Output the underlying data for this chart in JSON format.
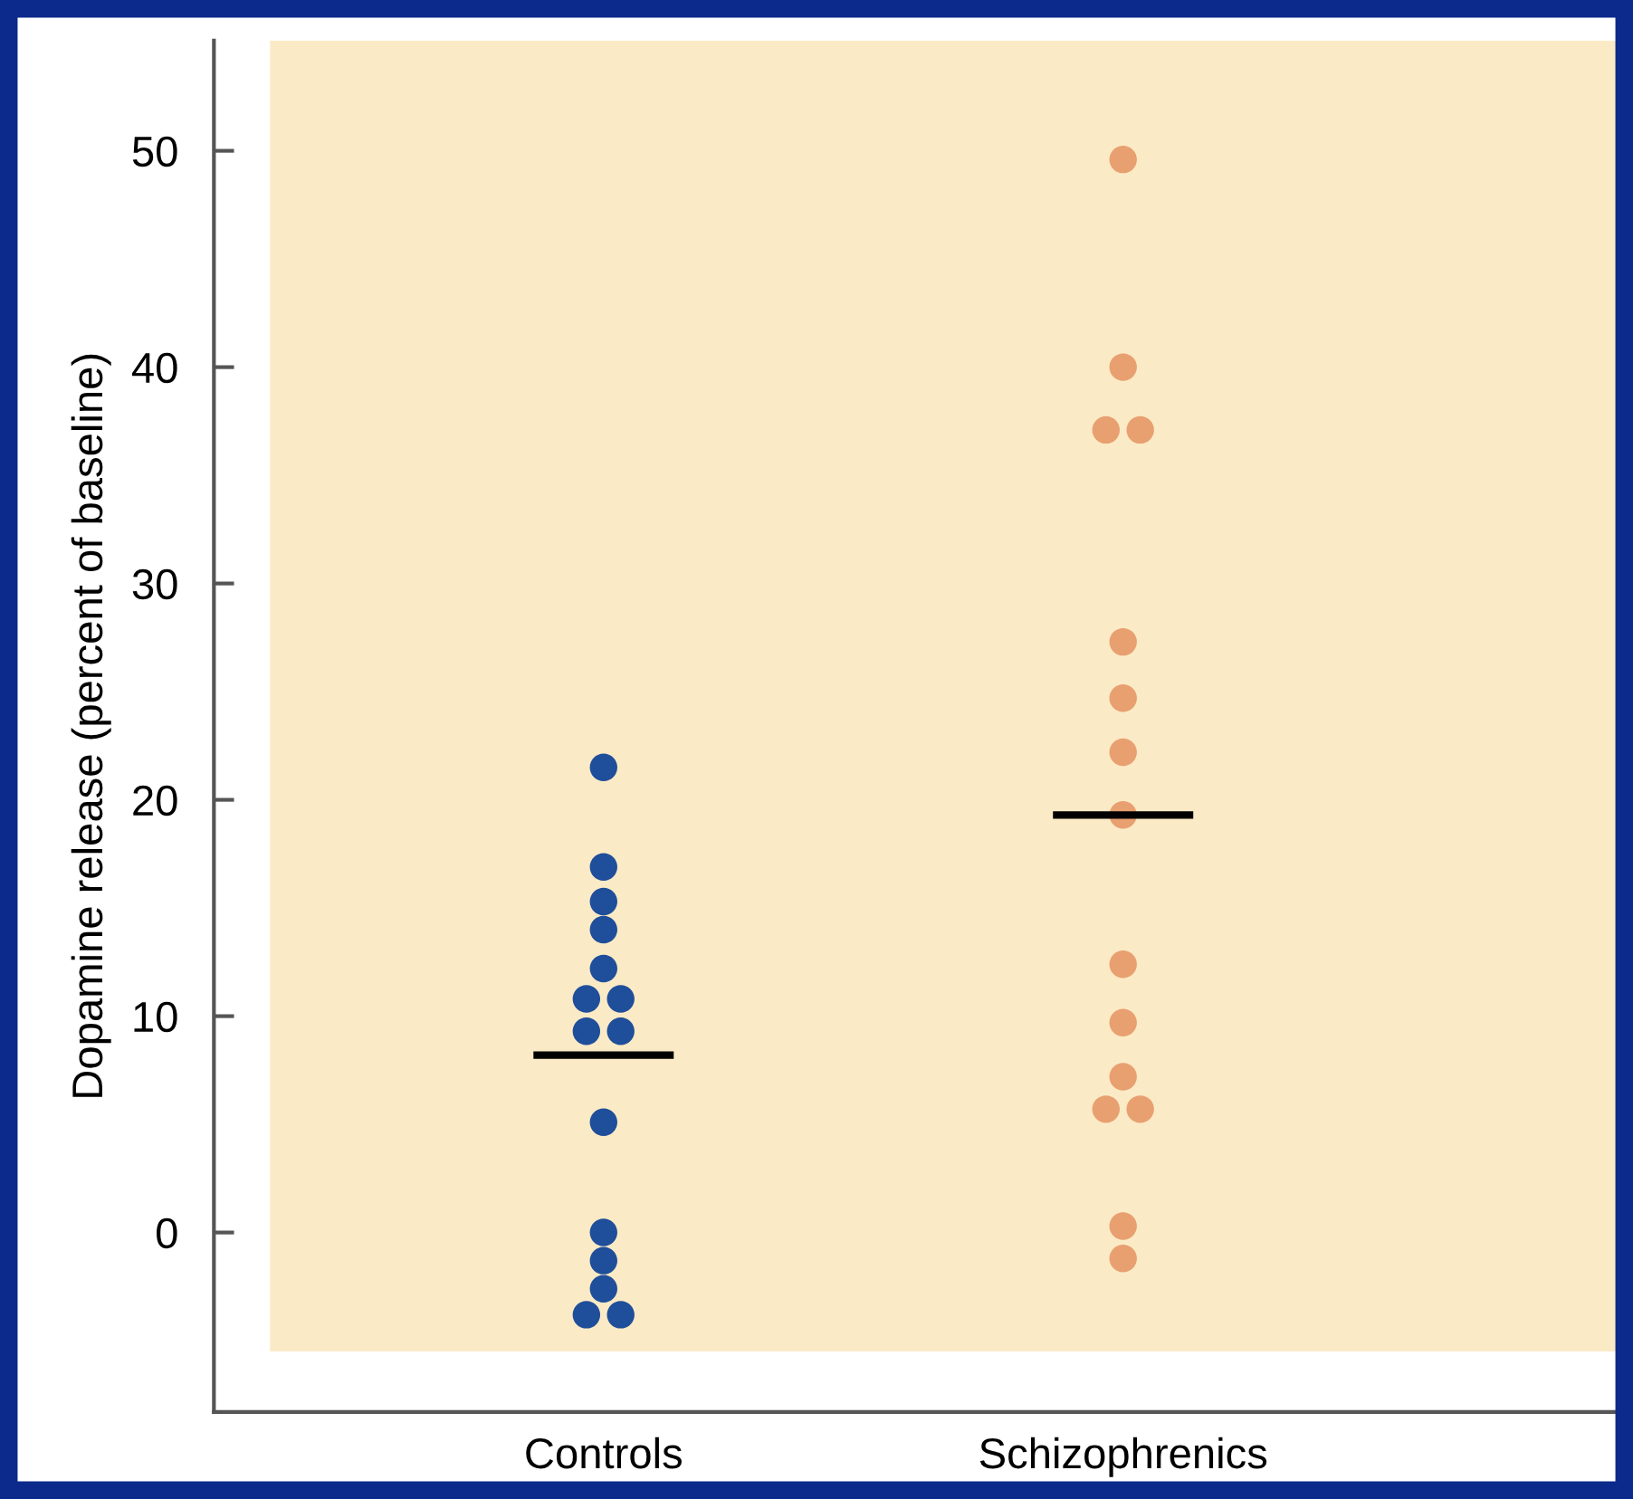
{
  "chart_data": {
    "type": "scatter",
    "ylabel": "Dopamine release (percent of baseline)",
    "categories": [
      "Controls",
      "Schizophrenics"
    ],
    "ylim": [
      -8.3,
      55.1
    ],
    "yticks": [
      0,
      10,
      20,
      30,
      40,
      50
    ],
    "grid": false,
    "legend": false,
    "marker": "circle",
    "bands": [
      {
        "axis": "y",
        "from": -5.5,
        "to": 55.1,
        "color": "#fbeac6"
      }
    ],
    "series": [
      {
        "color": "#1f4e9a",
        "x": [
          "Controls",
          "Controls",
          "Controls",
          "Controls",
          "Controls",
          "Controls",
          "Controls",
          "Controls",
          "Controls",
          "Controls",
          "Controls",
          "Controls",
          "Controls",
          "Controls",
          "Controls"
        ],
        "values": [
          21.5,
          16.9,
          15.3,
          14.0,
          12.2,
          10.8,
          10.8,
          9.3,
          9.3,
          5.1,
          0.0,
          -1.3,
          -2.6,
          -3.8,
          -3.8
        ]
      },
      {
        "color": "#e8a070",
        "x": [
          "Schizophrenics",
          "Schizophrenics",
          "Schizophrenics",
          "Schizophrenics",
          "Schizophrenics",
          "Schizophrenics",
          "Schizophrenics",
          "Schizophrenics",
          "Schizophrenics",
          "Schizophrenics",
          "Schizophrenics",
          "Schizophrenics",
          "Schizophrenics",
          "Schizophrenics",
          "Schizophrenics"
        ],
        "values": [
          49.6,
          40.0,
          37.1,
          37.1,
          27.3,
          24.7,
          22.2,
          19.3,
          12.4,
          9.7,
          7.2,
          5.7,
          5.7,
          0.3,
          -1.2
        ]
      },
      {
        "type": "bar",
        "color": "#000000",
        "base": [
          8.2,
          19.3
        ],
        "values": [
          0,
          0
        ]
      }
    ]
  }
}
